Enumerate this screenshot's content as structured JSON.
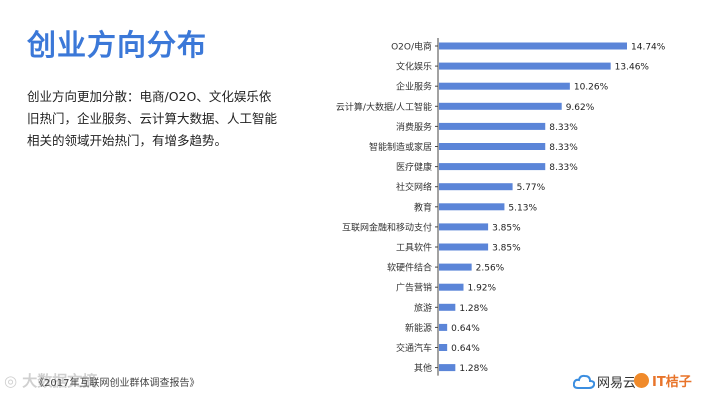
{
  "page": {
    "title": "创业方向分布",
    "description": "创业方向更加分散：电商/O2O、文化娱乐依旧热门，企业服务、云计算大数据、人工智能相关的领域开始热门，有增多趋势。",
    "source": "《2017年互联网创业群体调查报告》",
    "watermark": "◎ 大数据文摘",
    "logo_netease": "网易云",
    "logo_it": "IT桔子"
  },
  "colors": {
    "title": "#3b78d8",
    "bar": "#5b85d8",
    "axis": "#444444"
  },
  "chart_data": {
    "type": "bar",
    "orientation": "horizontal",
    "categories": [
      "O2O/电商",
      "文化娱乐",
      "企业服务",
      "云计算/大数据/人工智能",
      "消费服务",
      "智能制造或家居",
      "医疗健康",
      "社交网络",
      "教育",
      "互联网金融和移动支付",
      "工具软件",
      "软硬件结合",
      "广告营销",
      "旅游",
      "新能源",
      "交通汽车",
      "其他"
    ],
    "values": [
      14.74,
      13.46,
      10.26,
      9.62,
      8.33,
      8.33,
      8.33,
      5.77,
      5.13,
      3.85,
      3.85,
      2.56,
      1.92,
      1.28,
      0.64,
      0.64,
      1.28
    ],
    "labels": [
      "14.74%",
      "13.46%",
      "10.26%",
      "9.62%",
      "8.33%",
      "8.33%",
      "8.33%",
      "5.77%",
      "5.13%",
      "3.85%",
      "3.85%",
      "2.56%",
      "1.92%",
      "1.28%",
      "0.64%",
      "0.64%",
      "1.28%"
    ],
    "unit": "%",
    "title": "",
    "xlabel": "",
    "ylabel": "",
    "grid": false
  }
}
